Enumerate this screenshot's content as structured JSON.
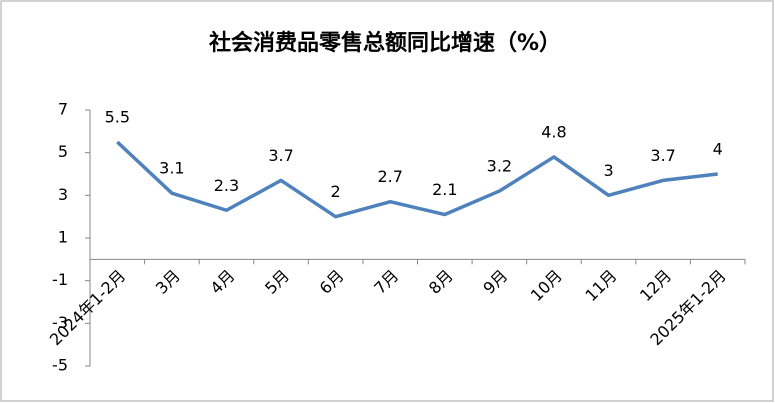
{
  "chart_data": {
    "type": "line",
    "title": "社会消费品零售总额同比增速（%）",
    "categories": [
      "2024年1-2月",
      "3月",
      "4月",
      "5月",
      "6月",
      "7月",
      "8月",
      "9月",
      "10月",
      "11月",
      "12月",
      "2025年1-2月"
    ],
    "values": [
      5.5,
      3.1,
      2.3,
      3.7,
      2,
      2.7,
      2.1,
      3.2,
      4.8,
      3,
      3.7,
      4
    ],
    "color": "#4f81bd",
    "ylim": [
      -5,
      7
    ],
    "yticks": [
      -5,
      -3,
      -1,
      1,
      3,
      5,
      7
    ],
    "grid": false,
    "data_labels": true
  }
}
